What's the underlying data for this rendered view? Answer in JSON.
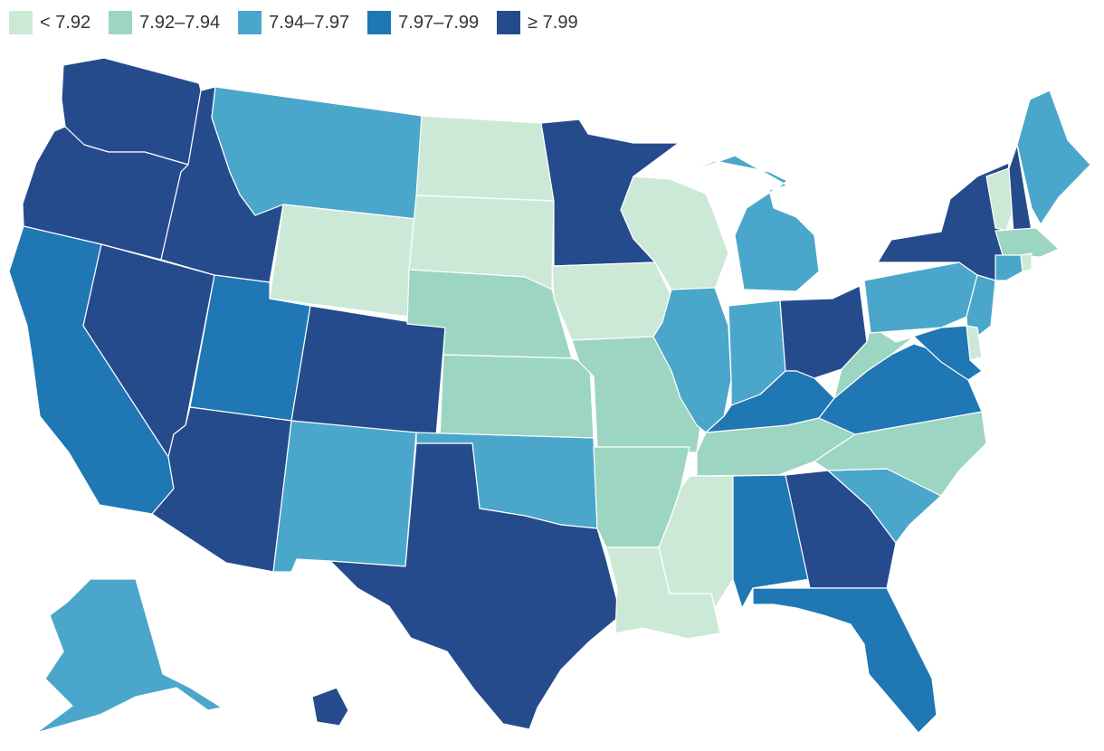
{
  "legend": {
    "items": [
      {
        "label": "< 7.92",
        "color": "#cce9d7"
      },
      {
        "label": "7.92–7.94",
        "color": "#9cd5c2"
      },
      {
        "label": "7.94–7.97",
        "color": "#4aa7cb"
      },
      {
        "label": "7.97–7.99",
        "color": "#1f77b4"
      },
      {
        "label": "≥ 7.99",
        "color": "#254b8c"
      }
    ]
  },
  "states": [
    {
      "id": "WA",
      "bin": 4
    },
    {
      "id": "OR",
      "bin": 4
    },
    {
      "id": "CA",
      "bin": 3
    },
    {
      "id": "NV",
      "bin": 4
    },
    {
      "id": "ID",
      "bin": 4
    },
    {
      "id": "MT",
      "bin": 2
    },
    {
      "id": "WY",
      "bin": 0
    },
    {
      "id": "UT",
      "bin": 3
    },
    {
      "id": "AZ",
      "bin": 4
    },
    {
      "id": "CO",
      "bin": 4
    },
    {
      "id": "NM",
      "bin": 2
    },
    {
      "id": "ND",
      "bin": 0
    },
    {
      "id": "SD",
      "bin": 0
    },
    {
      "id": "NE",
      "bin": 1
    },
    {
      "id": "KS",
      "bin": 1
    },
    {
      "id": "OK",
      "bin": 2
    },
    {
      "id": "TX",
      "bin": 4
    },
    {
      "id": "MN",
      "bin": 4
    },
    {
      "id": "IA",
      "bin": 0
    },
    {
      "id": "MO",
      "bin": 1
    },
    {
      "id": "AR",
      "bin": 1
    },
    {
      "id": "LA",
      "bin": 0
    },
    {
      "id": "WI",
      "bin": 0
    },
    {
      "id": "IL",
      "bin": 2
    },
    {
      "id": "MI",
      "bin": 2
    },
    {
      "id": "IN",
      "bin": 2
    },
    {
      "id": "OH",
      "bin": 4
    },
    {
      "id": "KY",
      "bin": 3
    },
    {
      "id": "TN",
      "bin": 1
    },
    {
      "id": "MS",
      "bin": 0
    },
    {
      "id": "AL",
      "bin": 3
    },
    {
      "id": "GA",
      "bin": 4
    },
    {
      "id": "FL",
      "bin": 3
    },
    {
      "id": "SC",
      "bin": 2
    },
    {
      "id": "NC",
      "bin": 1
    },
    {
      "id": "VA",
      "bin": 3
    },
    {
      "id": "WV",
      "bin": 1
    },
    {
      "id": "PA",
      "bin": 2
    },
    {
      "id": "NY",
      "bin": 4
    },
    {
      "id": "VT",
      "bin": 0
    },
    {
      "id": "NH",
      "bin": 4
    },
    {
      "id": "ME",
      "bin": 2
    },
    {
      "id": "MA",
      "bin": 1
    },
    {
      "id": "RI",
      "bin": 0
    },
    {
      "id": "CT",
      "bin": 2
    },
    {
      "id": "NJ",
      "bin": 2
    },
    {
      "id": "DE",
      "bin": 0
    },
    {
      "id": "MD",
      "bin": 3
    },
    {
      "id": "AK",
      "bin": 2
    },
    {
      "id": "HI",
      "bin": 4
    }
  ]
}
